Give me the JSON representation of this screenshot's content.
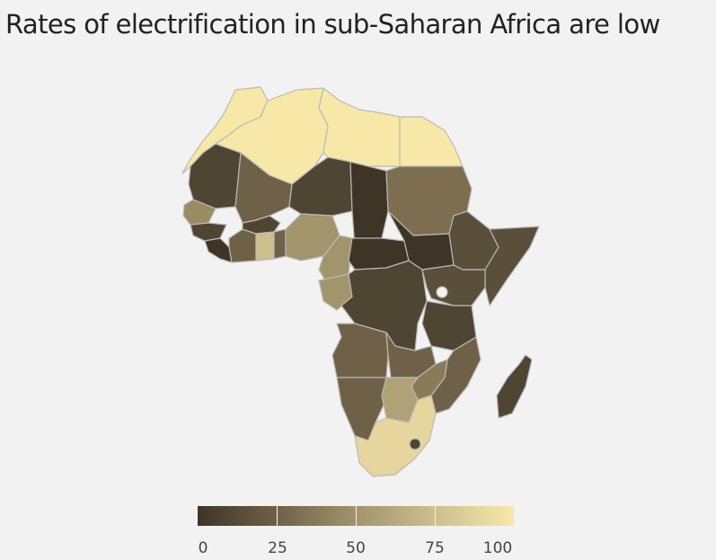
{
  "title": "Rates of electrification in sub-Saharan Africa are low",
  "legend": {
    "min": 0,
    "max": 100,
    "tick_labels": [
      "0",
      "25",
      "50",
      "75",
      "100"
    ],
    "colors": [
      "#3e3527",
      "#6f6148",
      "#a2946b",
      "#cdbf8e",
      "#f8e8a8"
    ]
  },
  "colors": {
    "background": "#f2f2f2",
    "border": "#b9b9b9"
  }
}
